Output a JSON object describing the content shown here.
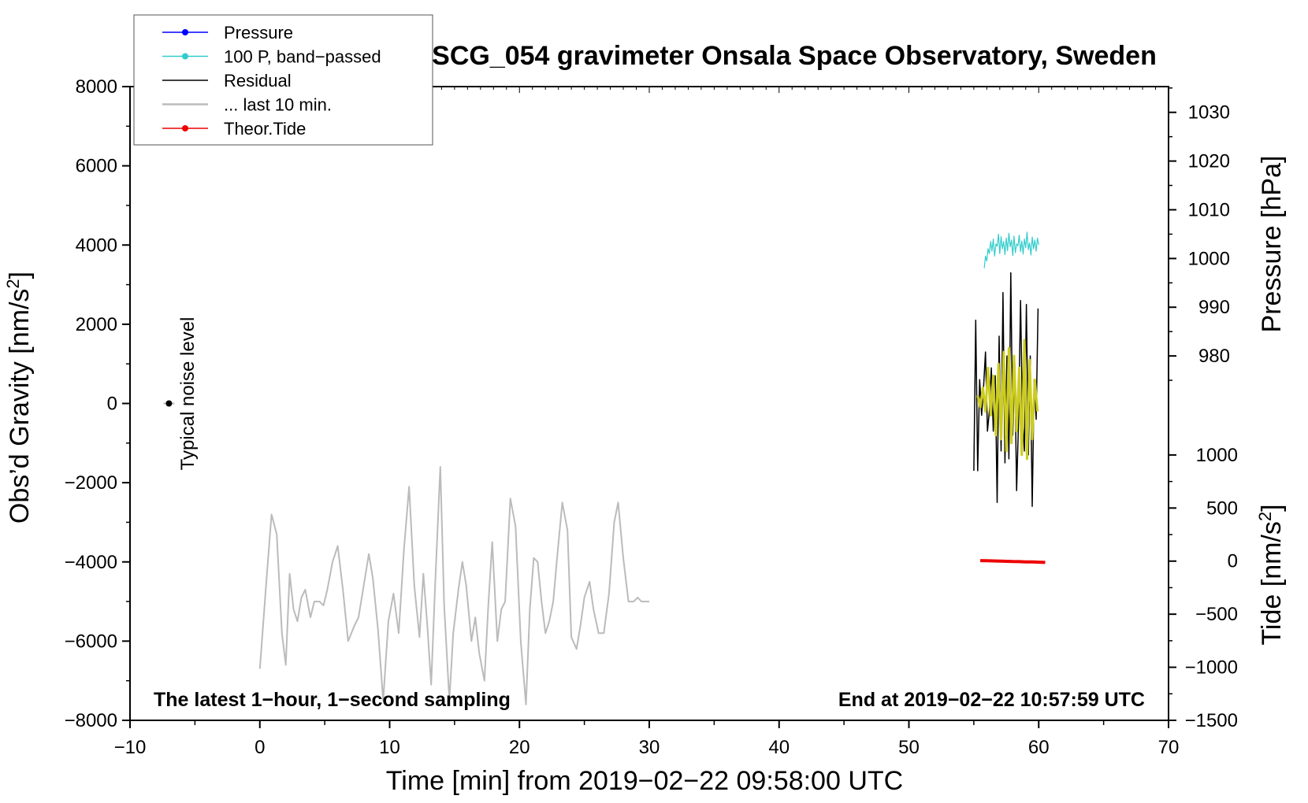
{
  "chart_data": {
    "type": "line",
    "title": "SCG_054 gravimeter Onsala Space Observatory, Sweden",
    "xlabel": "Time [min] from 2019−02−22 09:58:00 UTC",
    "ylabel_left": "Obs’d Gravity [nm/s",
    "ylabel_left_sup": "2",
    "ylabel_left_close": "]",
    "ylabel_right_pressure": "Pressure [hPa]",
    "ylabel_right_tide": "Tide [nm/s",
    "ylabel_right_tide_sup": "2",
    "ylabel_right_tide_close": "]",
    "xlim": [
      -10,
      70
    ],
    "ylim": [
      -8000,
      8000
    ],
    "x_ticks": [
      {
        "value": -10,
        "label": "−10"
      },
      {
        "value": 0,
        "label": "0"
      },
      {
        "value": 10,
        "label": "10"
      },
      {
        "value": 20,
        "label": "20"
      },
      {
        "value": 30,
        "label": "30"
      },
      {
        "value": 40,
        "label": "40"
      },
      {
        "value": 50,
        "label": "50"
      },
      {
        "value": 60,
        "label": "60"
      },
      {
        "value": 70,
        "label": "70"
      }
    ],
    "y_ticks": [
      {
        "value": 8000,
        "label": "8000"
      },
      {
        "value": 6000,
        "label": "6000"
      },
      {
        "value": 4000,
        "label": "4000"
      },
      {
        "value": 2000,
        "label": "2000"
      },
      {
        "value": 0,
        "label": "0"
      },
      {
        "value": -2000,
        "label": "−2000"
      },
      {
        "value": -4000,
        "label": "−4000"
      },
      {
        "value": -6000,
        "label": "−6000"
      },
      {
        "value": -8000,
        "label": "−8000"
      }
    ],
    "pressure_axis": {
      "range_hpa": [
        980,
        1030
      ],
      "gravity_equiv": [
        1200,
        7350
      ],
      "ticks": [
        {
          "value": 1030,
          "label": "1030"
        },
        {
          "value": 1020,
          "label": "1020"
        },
        {
          "value": 1010,
          "label": "1010"
        },
        {
          "value": 1000,
          "label": "1000"
        },
        {
          "value": 990,
          "label": "990"
        },
        {
          "value": 980,
          "label": "980"
        }
      ]
    },
    "tide_axis": {
      "range": [
        -1500,
        1000
      ],
      "gravity_equiv": [
        -8000,
        -1300
      ],
      "ticks": [
        {
          "value": 1000,
          "label": "1000"
        },
        {
          "value": 500,
          "label": "500"
        },
        {
          "value": 0,
          "label": "0"
        },
        {
          "value": -500,
          "label": "−500"
        },
        {
          "value": -1000,
          "label": "−1000"
        },
        {
          "value": -1500,
          "label": "−1500"
        }
      ]
    },
    "noise_label": "Typical noise level",
    "noise_point": {
      "x": -7,
      "y": 0
    },
    "note_left": "The latest 1−hour, 1−second sampling",
    "note_right": "End at 2019−02−22 10:57:59 UTC",
    "colors": {
      "pressure": "#0000ff",
      "band_passed": "#33cccc",
      "residual": "#000000",
      "last10": "#bbbbbb",
      "tide": "#ee0000",
      "highlight": "#cccc22"
    },
    "legend": [
      {
        "label": "Pressure",
        "color": "#0000ff",
        "marker": true
      },
      {
        "label": "100 P, band−passed",
        "color": "#33cccc",
        "marker": true
      },
      {
        "label": "Residual",
        "color": "#000000",
        "marker": false
      },
      {
        "label": "... last 10 min.",
        "color": "#bbbbbb",
        "marker": false
      },
      {
        "label": "Theor.Tide",
        "color": "#ee0000",
        "marker": true
      }
    ],
    "series": [
      {
        "name": "... last 10 min.",
        "x": [
          0,
          0.5,
          0.9,
          1.3,
          1.7,
          2.0,
          2.3,
          2.6,
          2.9,
          3.2,
          3.5,
          3.9,
          4.2,
          4.6,
          4.9,
          5.2,
          5.6,
          6.0,
          6.4,
          6.8,
          7.3,
          7.6,
          8.0,
          8.4,
          8.7,
          9.1,
          9.5,
          9.9,
          10.3,
          10.7,
          11.1,
          11.5,
          11.9,
          12.3,
          12.6,
          12.9,
          13.2,
          13.5,
          13.9,
          14.2,
          14.6,
          14.9,
          15.3,
          15.6,
          15.9,
          16.3,
          16.6,
          16.9,
          17.3,
          17.6,
          17.9,
          18.3,
          18.6,
          18.9,
          19.3,
          19.7,
          20.1,
          20.5,
          20.8,
          21.1,
          21.4,
          21.7,
          22.0,
          22.3,
          22.6,
          22.9,
          23.3,
          23.7,
          24.0,
          24.4,
          24.7,
          25.0,
          25.4,
          25.7,
          26.1,
          26.5,
          26.9,
          27.3,
          27.6,
          28.0,
          28.4,
          28.8,
          29.1,
          29.4,
          29.7,
          30.0
        ],
        "y": [
          -6700,
          -4500,
          -2800,
          -3300,
          -5800,
          -6600,
          -4300,
          -5200,
          -5500,
          -4900,
          -4700,
          -5400,
          -5000,
          -5000,
          -5100,
          -4700,
          -4000,
          -3600,
          -4700,
          -6000,
          -5600,
          -5400,
          -4600,
          -3800,
          -4400,
          -5700,
          -7500,
          -5500,
          -4800,
          -5800,
          -3700,
          -2100,
          -4600,
          -5900,
          -4300,
          -5600,
          -7100,
          -4600,
          -1600,
          -5100,
          -7500,
          -5800,
          -4700,
          -4000,
          -4600,
          -6000,
          -5400,
          -6300,
          -7000,
          -5100,
          -3500,
          -6000,
          -5200,
          -5000,
          -2400,
          -3100,
          -6000,
          -7600,
          -5200,
          -3900,
          -4000,
          -5000,
          -5800,
          -5500,
          -5000,
          -3900,
          -2500,
          -3200,
          -5900,
          -6200,
          -5600,
          -4900,
          -4500,
          -5200,
          -5800,
          -5800,
          -4800,
          -3000,
          -2500,
          -3900,
          -5000,
          -5000,
          -4900,
          -5000,
          -5000,
          -5000
        ]
      },
      {
        "name": "Residual",
        "x": [
          55.0,
          55.15,
          55.3,
          55.45,
          55.6,
          55.75,
          55.9,
          56.05,
          56.2,
          56.35,
          56.5,
          56.65,
          56.8,
          56.95,
          57.1,
          57.25,
          57.4,
          57.55,
          57.7,
          57.85,
          58.0,
          58.15,
          58.3,
          58.45,
          58.6,
          58.75,
          58.9,
          59.05,
          59.2,
          59.35,
          59.5,
          59.65,
          59.8,
          59.95
        ],
        "y": [
          -1700,
          2100,
          -1700,
          600,
          -300,
          400,
          1300,
          -700,
          -200,
          900,
          -700,
          700,
          -2500,
          1700,
          -1200,
          2800,
          -1500,
          1200,
          -1400,
          3300,
          -800,
          1000,
          -2200,
          -400,
          2600,
          -400,
          -1200,
          2500,
          -1300,
          1200,
          -2600,
          600,
          -400,
          2400
        ]
      },
      {
        "name": "Residual (highlighted)",
        "x": [
          55.3,
          55.5,
          55.7,
          55.9,
          56.1,
          56.3,
          56.5,
          56.7,
          56.9,
          57.1,
          57.3,
          57.5,
          57.7,
          57.9,
          58.1,
          58.3,
          58.5,
          58.7,
          58.9,
          59.1,
          59.3,
          59.5,
          59.7,
          59.9
        ],
        "y": [
          200,
          -100,
          400,
          -200,
          900,
          -300,
          700,
          -800,
          1000,
          -900,
          1300,
          -1200,
          1400,
          -1000,
          1200,
          -700,
          900,
          -1300,
          1600,
          -1400,
          1100,
          -900,
          600,
          -200
        ]
      },
      {
        "name": "100 P, band−passed",
        "x": [
          55.8,
          55.9,
          56.0,
          56.1,
          56.2,
          56.3,
          56.4,
          56.5,
          56.6,
          56.7,
          56.8,
          56.9,
          57.0,
          57.1,
          57.2,
          57.3,
          57.4,
          57.5,
          57.6,
          57.7,
          57.8,
          57.9,
          58.0,
          58.1,
          58.2,
          58.3,
          58.4,
          58.5,
          58.6,
          58.7,
          58.8,
          58.9,
          59.0,
          59.1,
          59.2,
          59.3,
          59.4,
          59.5,
          59.6,
          59.7,
          59.8,
          59.9,
          60.0
        ],
        "y": [
          998.0,
          1000.5,
          999.5,
          1002.0,
          1001.0,
          1003.5,
          1001.5,
          1004.0,
          1000.5,
          1003.0,
          1002.5,
          1005.0,
          1001.0,
          1004.5,
          1002.0,
          1003.5,
          1000.8,
          1004.2,
          1001.6,
          1005.2,
          1002.4,
          1003.8,
          1000.6,
          1004.6,
          1001.2,
          1003.0,
          1002.6,
          1004.8,
          1001.4,
          1003.6,
          1000.9,
          1004.0,
          1002.2,
          1005.4,
          1001.8,
          1003.2,
          1000.7,
          1004.4,
          1002.0,
          1003.8,
          1001.5,
          1004.2,
          1002.8
        ]
      },
      {
        "name": "Theor.Tide",
        "x": [
          55.5,
          56.0,
          56.5,
          57.0,
          57.5,
          58.0,
          58.5,
          59.0,
          59.5,
          60.0,
          60.5
        ],
        "y": [
          5,
          3,
          2,
          0,
          -2,
          -4,
          -5,
          -7,
          -8,
          -10,
          -12
        ]
      }
    ]
  }
}
